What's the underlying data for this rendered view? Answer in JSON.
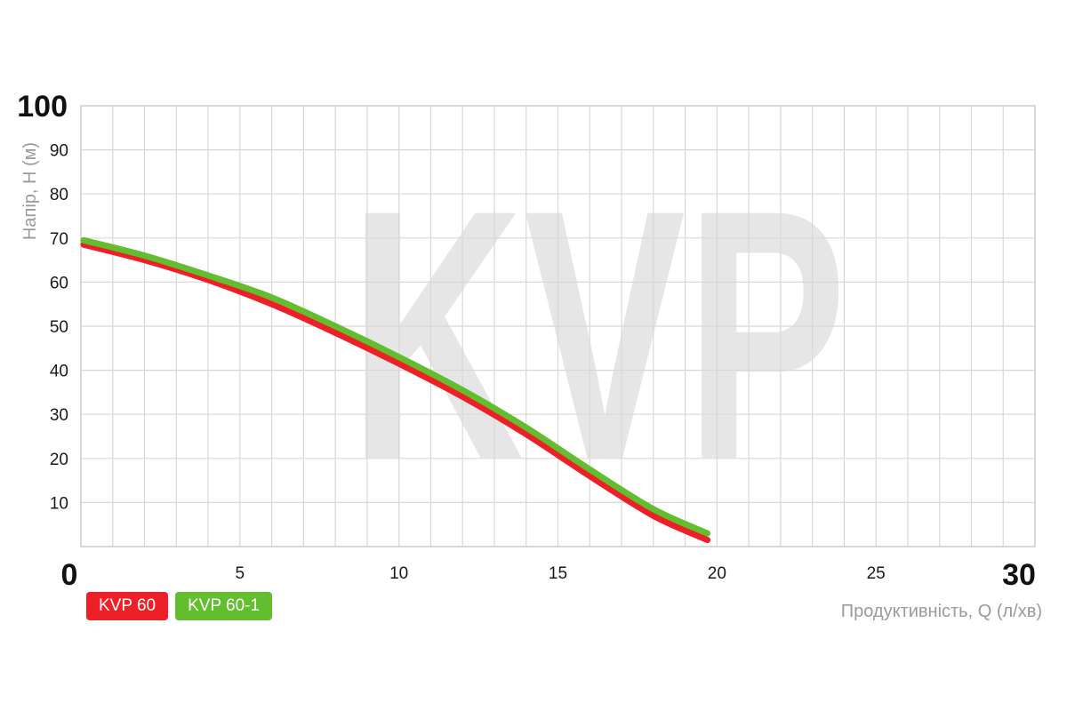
{
  "chart_data": {
    "type": "line",
    "watermark": "KVP",
    "xlabel": "Продуктивність, Q (л/хв)",
    "ylabel": "Напір, H (м)",
    "xlim": [
      0,
      30
    ],
    "ylim": [
      0,
      100
    ],
    "grid": true,
    "legend_placement": "bottom-left",
    "x_ticks": [
      "0",
      "5",
      "10",
      "15",
      "20",
      "25",
      "30"
    ],
    "y_ticks": [
      "10",
      "20",
      "30",
      "40",
      "50",
      "60",
      "70",
      "80",
      "90",
      "100"
    ],
    "series": [
      {
        "name": "KVP 60",
        "color": "#ee2027",
        "x": [
          0,
          2,
          4,
          6,
          8,
          10,
          12,
          14,
          16,
          18,
          19.7
        ],
        "y": [
          68.5,
          65,
          60.5,
          55,
          48.5,
          41.5,
          34,
          25.5,
          16,
          7,
          1.5
        ]
      },
      {
        "name": "KVP 60-1",
        "color": "#62be2e",
        "x": [
          0,
          2,
          4,
          6,
          8,
          10,
          12,
          14,
          16,
          18,
          19.7
        ],
        "y": [
          69.5,
          66,
          61.5,
          56.5,
          50,
          43,
          35.5,
          27,
          17.5,
          8.5,
          3
        ]
      }
    ]
  }
}
